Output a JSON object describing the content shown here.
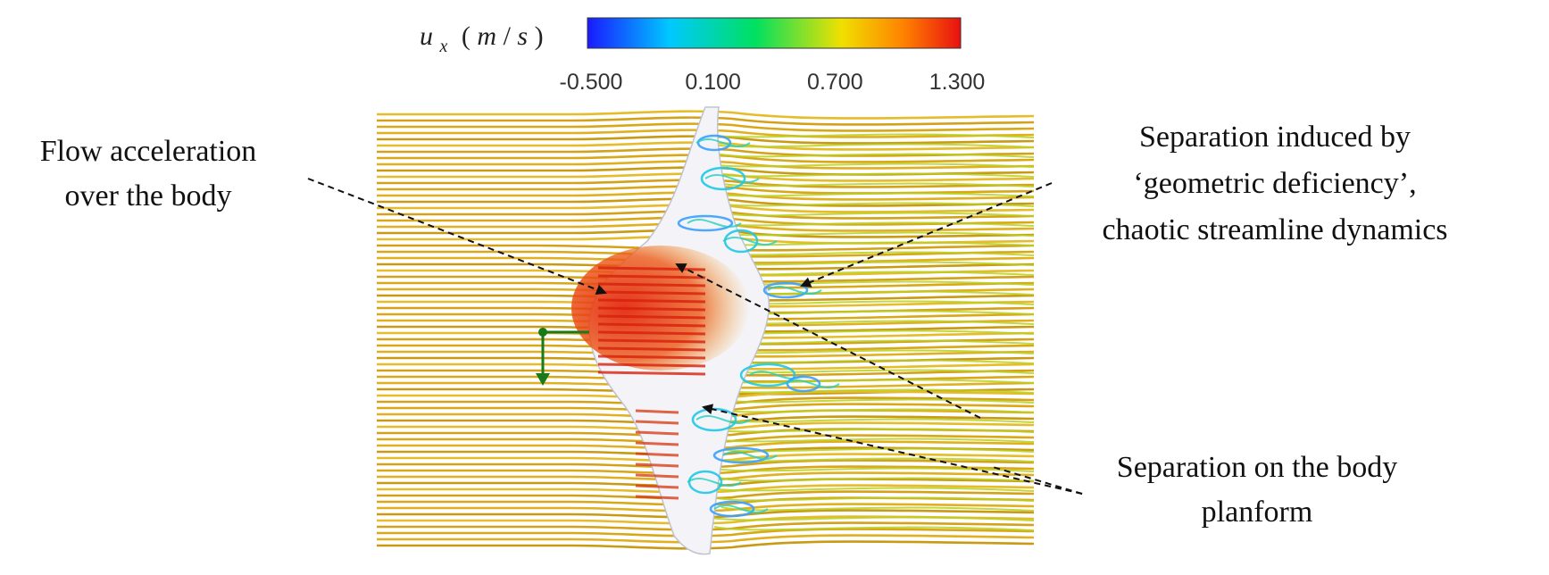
{
  "colorbar": {
    "variable": "u",
    "subscript": "x",
    "unit_open": "(",
    "unit_m": "m",
    "unit_slash": "/",
    "unit_s": "s",
    "unit_close": ")",
    "ticks": [
      "-0.500",
      "0.100",
      "0.700",
      "1.300"
    ],
    "colors": [
      "#1a1aff",
      "#00c8ff",
      "#00e060",
      "#f0e000",
      "#ff8000",
      "#e81010"
    ]
  },
  "annotations": {
    "acceleration": [
      "Flow acceleration",
      "over the body"
    ],
    "geometric": [
      "Separation induced by",
      "‘geometric deficiency’,",
      "chaotic streamline dynamics"
    ],
    "planform": [
      "Separation on the body",
      "planform"
    ]
  }
}
